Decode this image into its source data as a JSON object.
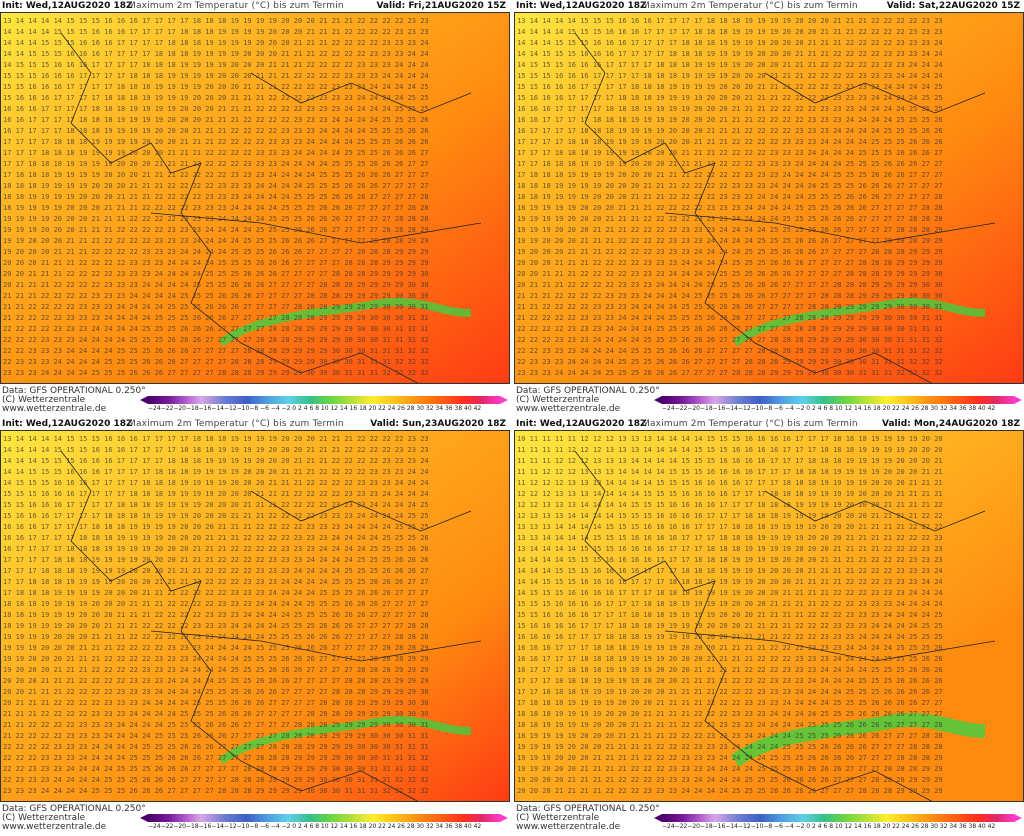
{
  "title": "Maximum 2m Temperatur (°C) bis zum Termin",
  "source": "Data: GFS OPERATIONAL 0.250°",
  "copyright": "(C) Wetterzentrale",
  "url": "www.wetterzentrale.de",
  "colorbar_ticks": "−24−22−20−18−16−14−12−10−8 −6 −4 −2  0  2  4  6  8 10 12 14 16 18 20 22 24 26 28 30 32 34 36 38 40 42",
  "colors": {
    "cool": "#ffe840",
    "mild": "#ffb020",
    "warm": "#ff8a10",
    "hot": "#ff3a14",
    "green": "#40d040"
  },
  "panels": [
    {
      "init": "Init: Wed,12AUG2020 18Z",
      "valid": "Valid: Fri,21AUG2020 15Z",
      "regime": "hot"
    },
    {
      "init": "Init: Wed,12AUG2020 18Z",
      "valid": "Valid: Sat,22AUG2020 15Z",
      "regime": "hot"
    },
    {
      "init": "Init: Wed,12AUG2020 18Z",
      "valid": "Valid: Sun,23AUG2020 18Z",
      "regime": "warm"
    },
    {
      "init": "Init: Wed,12AUG2020 18Z",
      "valid": "Valid: Mon,24AUG2020 18Z",
      "regime": "cool"
    }
  ]
}
